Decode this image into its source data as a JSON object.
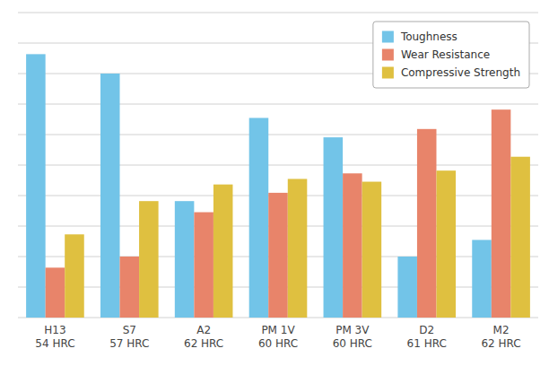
{
  "chart_data": {
    "type": "bar",
    "categories": [
      "H13\n54 HRC",
      "S7\n57 HRC",
      "A2\n62 HRC",
      "PM 1V\n60 HRC",
      "PM 3V\n60 HRC",
      "D2\n61 HRC",
      "M2\n62 HRC"
    ],
    "series": [
      {
        "name": "Toughness",
        "color": "#72c4e8",
        "values": [
          9.5,
          8.8,
          4.2,
          7.2,
          6.5,
          2.2,
          2.8
        ]
      },
      {
        "name": "Wear Resistance",
        "color": "#e8846a",
        "values": [
          1.8,
          2.2,
          3.8,
          4.5,
          5.2,
          6.8,
          7.5
        ]
      },
      {
        "name": "Compressive Strength",
        "color": "#dfc040",
        "values": [
          3.0,
          4.2,
          4.8,
          5.0,
          4.9,
          5.3,
          5.8
        ]
      }
    ],
    "ylim": [
      0,
      11.0
    ],
    "yticks": [
      0,
      1.1,
      2.2,
      3.3,
      4.4,
      5.5,
      6.6,
      7.7,
      8.8,
      9.9,
      11.0
    ],
    "grid": true,
    "tick_labels": "x",
    "legend": "upper right"
  }
}
